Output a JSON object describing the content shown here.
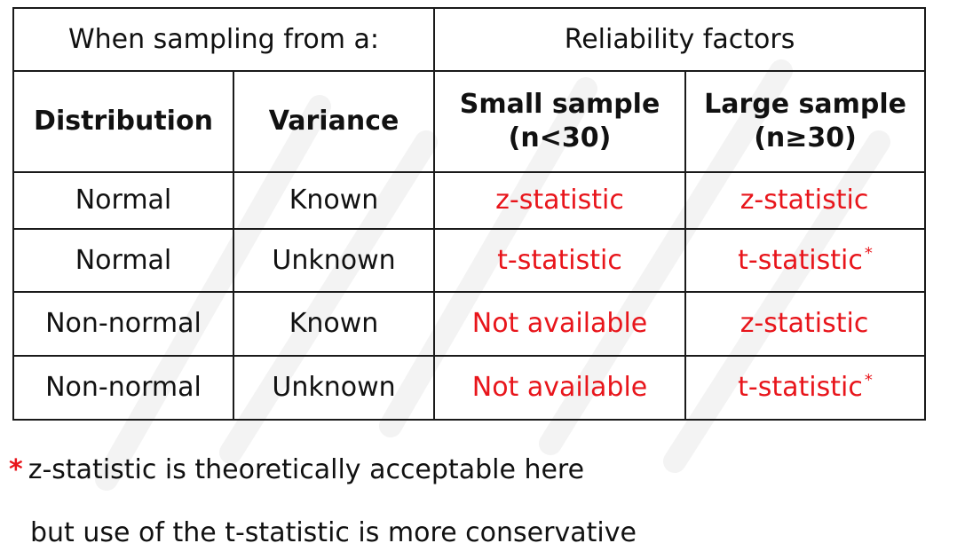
{
  "table": {
    "title_left": "When sampling from a:",
    "title_right": "Reliability factors",
    "headers": {
      "distribution": "Distribution",
      "variance": "Variance",
      "small_sample_line1": "Small sample",
      "small_sample_line2": "(n<30)",
      "large_sample_line1": "Large sample",
      "large_sample_line2": "(n≥30)"
    },
    "rows": [
      {
        "distribution": "Normal",
        "variance": "Known",
        "small": "z-statistic",
        "large": "z-statistic",
        "large_mark": ""
      },
      {
        "distribution": "Normal",
        "variance": "Unknown",
        "small": "t-statistic",
        "large": "t-statistic",
        "large_mark": "*"
      },
      {
        "distribution": "Non-normal",
        "variance": "Known",
        "small": "Not available",
        "large": "z-statistic",
        "large_mark": ""
      },
      {
        "distribution": "Non-normal",
        "variance": "Unknown",
        "small": "Not available",
        "large": "t-statistic",
        "large_mark": "*"
      }
    ]
  },
  "footnote": {
    "marker": "*",
    "line1": "z-statistic is theoretically acceptable here",
    "line2": "but use of the t-statistic is more conservative"
  },
  "colors": {
    "result_text": "#e8151b",
    "border": "#1a1a1a",
    "text": "#111111"
  }
}
